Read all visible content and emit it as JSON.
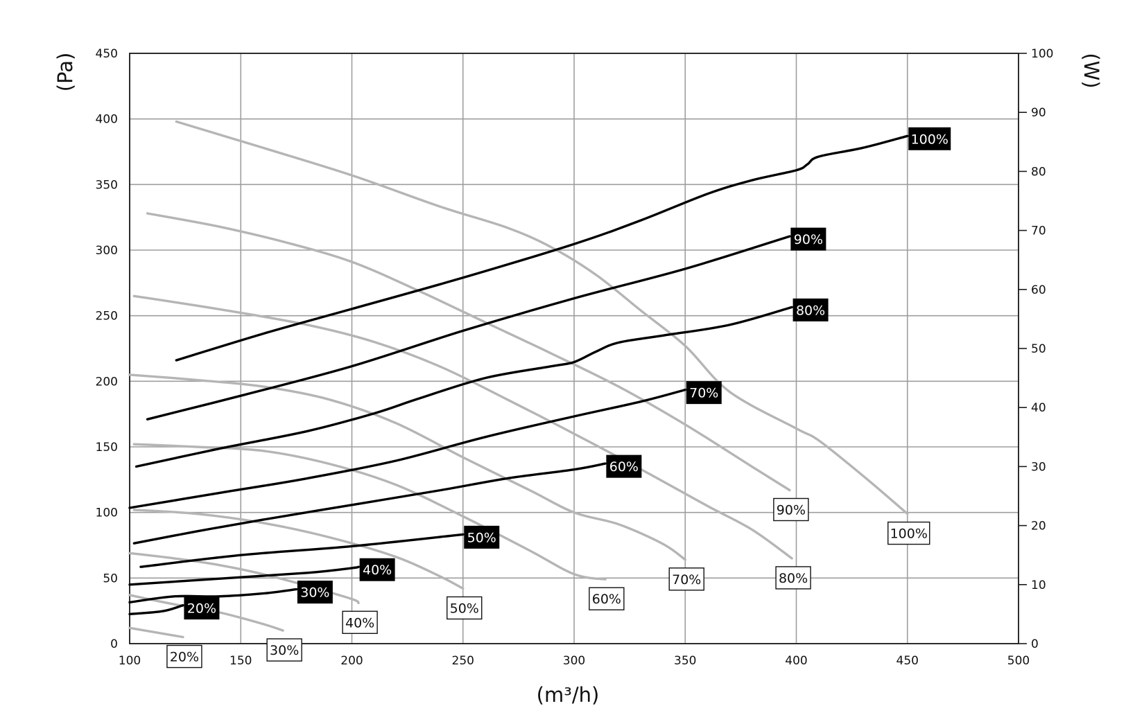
{
  "chart_data": {
    "type": "line",
    "title": "",
    "xlabel": "(m³/h)",
    "ylabel": "(Pa)",
    "y2label": "(W)",
    "xlim": [
      100,
      500
    ],
    "ylim": [
      0,
      450
    ],
    "y2lim": [
      0,
      100
    ],
    "x_ticks": [
      "100",
      "150",
      "200",
      "250",
      "300",
      "350",
      "400",
      "450",
      "500"
    ],
    "y_ticks": [
      "0",
      "50",
      "100",
      "150",
      "200",
      "250",
      "300",
      "350",
      "400",
      "450"
    ],
    "y2_ticks": [
      "0",
      "10",
      "20",
      "30",
      "40",
      "50",
      "60",
      "70",
      "80",
      "90",
      "100"
    ],
    "grid": true,
    "pressure_series": [
      {
        "name": "20%",
        "label": "20%",
        "points": [
          [
            100,
            12
          ],
          [
            124,
            5
          ]
        ]
      },
      {
        "name": "30%",
        "label": "30%",
        "points": [
          [
            100,
            37
          ],
          [
            120,
            30
          ],
          [
            140,
            24
          ],
          [
            160,
            15
          ],
          [
            169,
            10
          ]
        ]
      },
      {
        "name": "40%",
        "label": "40%",
        "points": [
          [
            100,
            69
          ],
          [
            120,
            65
          ],
          [
            140,
            60
          ],
          [
            160,
            53
          ],
          [
            180,
            44
          ],
          [
            200,
            34
          ],
          [
            203,
            31
          ]
        ]
      },
      {
        "name": "50%",
        "label": "50%",
        "points": [
          [
            102,
            102
          ],
          [
            130,
            99
          ],
          [
            160,
            92
          ],
          [
            190,
            81
          ],
          [
            220,
            66
          ],
          [
            240,
            51
          ],
          [
            250,
            42
          ]
        ]
      },
      {
        "name": "60%",
        "label": "60%",
        "points": [
          [
            102,
            152
          ],
          [
            130,
            150
          ],
          [
            160,
            147
          ],
          [
            190,
            137
          ],
          [
            220,
            121
          ],
          [
            250,
            97
          ],
          [
            280,
            71
          ],
          [
            300,
            53
          ],
          [
            314,
            49
          ]
        ]
      },
      {
        "name": "70%",
        "label": "70%",
        "points": [
          [
            100,
            205
          ],
          [
            130,
            201
          ],
          [
            160,
            196
          ],
          [
            190,
            186
          ],
          [
            220,
            168
          ],
          [
            250,
            142
          ],
          [
            280,
            117
          ],
          [
            300,
            100
          ],
          [
            320,
            91
          ],
          [
            340,
            76
          ],
          [
            350,
            64
          ]
        ]
      },
      {
        "name": "80%",
        "label": "80%",
        "points": [
          [
            102,
            265
          ],
          [
            140,
            255
          ],
          [
            180,
            243
          ],
          [
            210,
            230
          ],
          [
            240,
            211
          ],
          [
            270,
            186
          ],
          [
            300,
            160
          ],
          [
            330,
            133
          ],
          [
            360,
            105
          ],
          [
            380,
            87
          ],
          [
            398,
            65
          ]
        ]
      },
      {
        "name": "90%",
        "label": "90%",
        "points": [
          [
            108,
            328
          ],
          [
            140,
            318
          ],
          [
            170,
            306
          ],
          [
            200,
            291
          ],
          [
            230,
            269
          ],
          [
            260,
            245
          ],
          [
            290,
            221
          ],
          [
            320,
            196
          ],
          [
            350,
            167
          ],
          [
            380,
            135
          ],
          [
            397,
            117
          ]
        ]
      },
      {
        "name": "100%",
        "label": "100%",
        "points": [
          [
            121,
            398
          ],
          [
            160,
            378
          ],
          [
            200,
            357
          ],
          [
            240,
            333
          ],
          [
            270,
            317
          ],
          [
            290,
            302
          ],
          [
            310,
            281
          ],
          [
            330,
            254
          ],
          [
            350,
            227
          ],
          [
            370,
            192
          ],
          [
            400,
            164
          ],
          [
            410,
            155
          ],
          [
            430,
            128
          ],
          [
            450,
            99
          ]
        ]
      }
    ],
    "power_series": [
      {
        "name": "20%",
        "label": "20%",
        "points": [
          [
            100,
            5
          ],
          [
            115,
            5.5
          ],
          [
            124,
            6.5
          ]
        ]
      },
      {
        "name": "30%",
        "label": "30%",
        "points": [
          [
            100,
            7
          ],
          [
            120,
            8
          ],
          [
            140,
            8
          ],
          [
            160,
            8.5
          ],
          [
            175,
            9.2
          ]
        ]
      },
      {
        "name": "40%",
        "label": "40%",
        "points": [
          [
            100,
            10
          ],
          [
            140,
            11
          ],
          [
            180,
            12
          ],
          [
            200,
            12.8
          ],
          [
            203,
            13
          ]
        ]
      },
      {
        "name": "50%",
        "label": "50%",
        "points": [
          [
            105,
            13
          ],
          [
            150,
            15
          ],
          [
            200,
            16.5
          ],
          [
            250,
            18.5
          ]
        ]
      },
      {
        "name": "60%",
        "label": "60%",
        "points": [
          [
            102,
            17
          ],
          [
            130,
            19
          ],
          [
            160,
            21
          ],
          [
            200,
            23.5
          ],
          [
            240,
            26
          ],
          [
            270,
            28
          ],
          [
            300,
            29.5
          ],
          [
            314,
            30.5
          ]
        ]
      },
      {
        "name": "70%",
        "label": "70%",
        "points": [
          [
            100,
            23
          ],
          [
            140,
            25.5
          ],
          [
            180,
            28
          ],
          [
            220,
            31
          ],
          [
            260,
            35
          ],
          [
            300,
            38.5
          ],
          [
            330,
            41
          ],
          [
            350,
            43
          ]
        ]
      },
      {
        "name": "80%",
        "label": "80%",
        "points": [
          [
            103,
            30
          ],
          [
            140,
            33
          ],
          [
            180,
            36
          ],
          [
            210,
            39
          ],
          [
            230,
            41.5
          ],
          [
            260,
            45
          ],
          [
            290,
            47
          ],
          [
            300,
            47.7
          ],
          [
            310,
            49.5
          ],
          [
            320,
            51
          ],
          [
            340,
            52.2
          ],
          [
            370,
            54
          ],
          [
            398,
            57
          ]
        ]
      },
      {
        "name": "90%",
        "label": "90%",
        "points": [
          [
            108,
            38
          ],
          [
            150,
            42
          ],
          [
            200,
            47
          ],
          [
            250,
            53
          ],
          [
            300,
            58.5
          ],
          [
            350,
            63.5
          ],
          [
            397,
            69
          ]
        ]
      },
      {
        "name": "100%",
        "label": "100%",
        "points": [
          [
            121,
            48
          ],
          [
            160,
            52.5
          ],
          [
            200,
            56.7
          ],
          [
            250,
            62
          ],
          [
            300,
            67.7
          ],
          [
            330,
            71.7
          ],
          [
            360,
            76.2
          ],
          [
            380,
            78.5
          ],
          [
            400,
            80.2
          ],
          [
            405,
            81.2
          ],
          [
            410,
            82.5
          ],
          [
            430,
            84
          ],
          [
            450,
            86
          ]
        ]
      }
    ]
  }
}
